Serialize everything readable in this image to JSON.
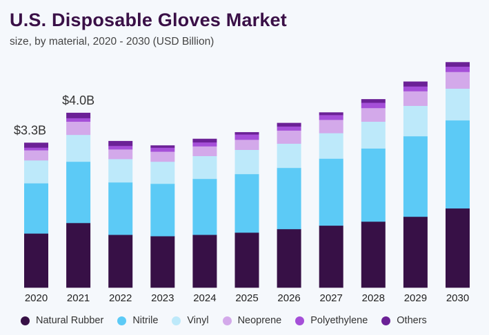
{
  "title": "U.S. Disposable Gloves Market",
  "subtitle": "size, by material, 2020 - 2030 (USD Billion)",
  "chart_data": {
    "type": "bar",
    "stacked": true,
    "title": "U.S. Disposable Gloves Market",
    "subtitle": "size, by material, 2020 - 2030 (USD Billion)",
    "xlabel": "",
    "ylabel": "USD Billion",
    "ylim": [
      0,
      5.2
    ],
    "grid": false,
    "legend_position": "bottom",
    "categories": [
      "2020",
      "2021",
      "2022",
      "2023",
      "2024",
      "2025",
      "2026",
      "2027",
      "2028",
      "2029",
      "2030"
    ],
    "series": [
      {
        "name": "Natural Rubber",
        "color": "#371046",
        "values": [
          1.23,
          1.47,
          1.2,
          1.17,
          1.2,
          1.25,
          1.33,
          1.41,
          1.5,
          1.61,
          1.8
        ]
      },
      {
        "name": "Nitrile",
        "color": "#5ccaf6",
        "values": [
          1.14,
          1.39,
          1.19,
          1.19,
          1.27,
          1.33,
          1.39,
          1.52,
          1.66,
          1.83,
          2.0
        ]
      },
      {
        "name": "Vinyl",
        "color": "#bde9fa",
        "values": [
          0.52,
          0.61,
          0.53,
          0.5,
          0.52,
          0.55,
          0.55,
          0.58,
          0.61,
          0.69,
          0.72
        ]
      },
      {
        "name": "Neoprene",
        "color": "#d3a9ea",
        "values": [
          0.23,
          0.3,
          0.22,
          0.23,
          0.22,
          0.23,
          0.3,
          0.3,
          0.31,
          0.33,
          0.38
        ]
      },
      {
        "name": "Polyethylene",
        "color": "#a54fd8",
        "values": [
          0.06,
          0.08,
          0.08,
          0.09,
          0.09,
          0.12,
          0.09,
          0.11,
          0.12,
          0.11,
          0.12
        ]
      },
      {
        "name": "Others",
        "color": "#6b2196",
        "values": [
          0.11,
          0.12,
          0.11,
          0.05,
          0.08,
          0.05,
          0.08,
          0.06,
          0.08,
          0.11,
          0.1
        ]
      }
    ],
    "annotations": [
      {
        "category": "2020",
        "text": "$3.3B"
      },
      {
        "category": "2021",
        "text": "$4.0B"
      }
    ]
  }
}
